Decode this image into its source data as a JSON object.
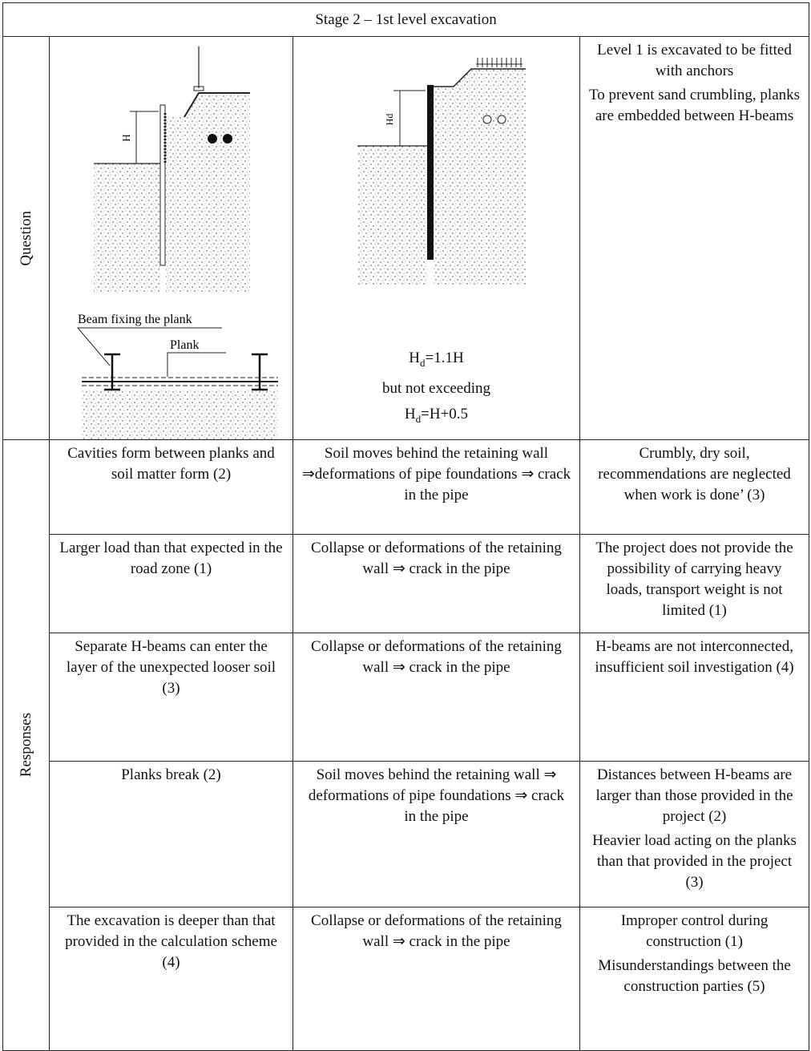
{
  "header": {
    "title": "Stage 2 – 1st level excavation"
  },
  "question": {
    "label": "Question",
    "figure_left": {
      "dimension": "H",
      "beam_label": "Beam fixing the plank",
      "plank_label": "Plank"
    },
    "figure_middle": {
      "dimension": "Hd",
      "formula_1": {
        "symbol": "H",
        "subscript": "d",
        "expression": "=1.1H"
      },
      "condition": "but not exceeding",
      "formula_2": {
        "symbol": "H",
        "subscript": "d",
        "expression": "=H+0.5"
      }
    },
    "description": [
      "Level 1 is excavated to be fitted with anchors",
      "To prevent sand crumbling, planks are embedded between H-beams"
    ]
  },
  "responses": {
    "label": "Responses",
    "rows": [
      [
        [
          "Cavities form between planks and soil matter form (2)"
        ],
        [
          "Soil moves behind the retaining wall ⇒deformations of pipe foundations ⇒ crack in the pipe"
        ],
        [
          "Crumbly, dry soil, recommendations are neglected when work is done’ (3)"
        ]
      ],
      [
        [
          "Larger load than that expected in the road zone (1)"
        ],
        [
          "Collapse or deformations of the retaining wall ⇒ crack in the pipe"
        ],
        [
          "The project does not provide the possibility of carrying heavy loads, transport weight is not limited (1)"
        ]
      ],
      [
        [
          "Separate H-beams can enter the layer of the unexpected looser soil",
          "(3)"
        ],
        [
          "Collapse or deformations of the retaining wall ⇒ crack in the pipe"
        ],
        [
          "H-beams are not interconnected, insufficient soil investigation (4)"
        ]
      ],
      [
        [
          "Planks break (2)"
        ],
        [
          "Soil moves behind the retaining wall ⇒ deformations of pipe foundations ⇒ crack in the pipe"
        ],
        [
          "Distances between H-beams are larger than those provided in the project (2)",
          "Heavier load acting on the planks than that provided in the project (3)"
        ]
      ],
      [
        [
          "The excavation is deeper than that provided in the calculation scheme (4)"
        ],
        [
          "Collapse or deformations of the retaining wall ⇒ crack in the pipe"
        ],
        [
          "Improper control during construction (1)",
          "Misunderstandings between the construction parties (5)"
        ]
      ]
    ]
  }
}
